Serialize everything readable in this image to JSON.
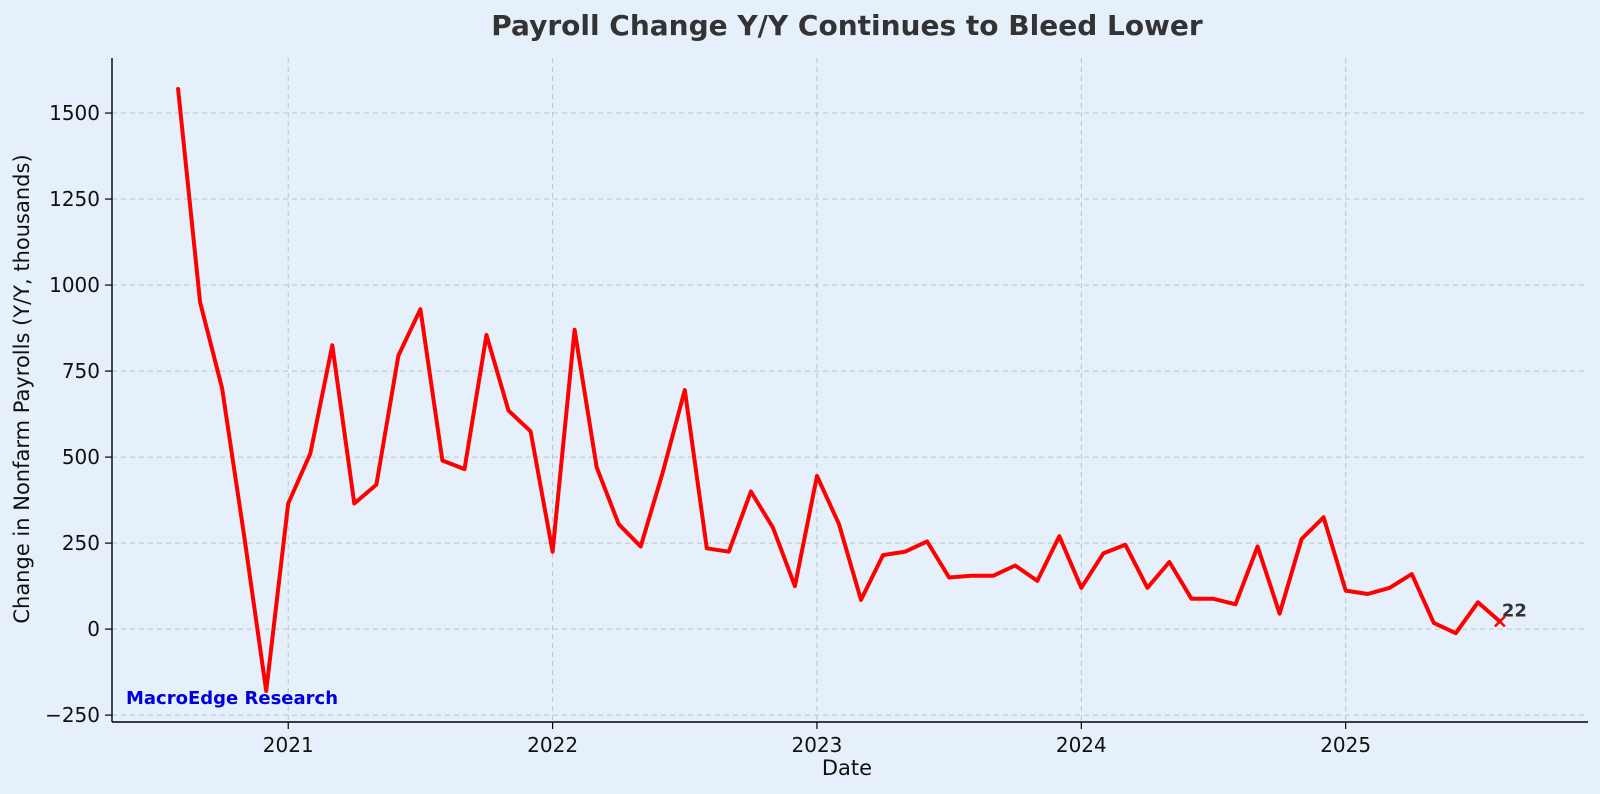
{
  "chart_data": {
    "type": "line",
    "title": "Payroll Change Y/Y Continues to Bleed Lower",
    "xlabel": "Date",
    "ylabel": "Change in Nonfarm Payrolls (Y/Y, thousands)",
    "xlim": [
      "2020-05-01",
      "2025-12-01"
    ],
    "ylim": [
      -270,
      1660
    ],
    "grid": true,
    "x_ticks": [
      "2021",
      "2022",
      "2023",
      "2024",
      "2025"
    ],
    "y_ticks": [
      -250,
      0,
      250,
      500,
      750,
      1000,
      1250,
      1500
    ],
    "color": "#ff0000",
    "series": [
      {
        "x": [
          "2020-08",
          "2020-09",
          "2020-10",
          "2020-11",
          "2020-12",
          "2021-01",
          "2021-02",
          "2021-03",
          "2021-04",
          "2021-05",
          "2021-06",
          "2021-07",
          "2021-08",
          "2021-09",
          "2021-10",
          "2021-11",
          "2021-12",
          "2022-01",
          "2022-02",
          "2022-03",
          "2022-04",
          "2022-05",
          "2022-06",
          "2022-07",
          "2022-08",
          "2022-09",
          "2022-10",
          "2022-11",
          "2022-12",
          "2023-01",
          "2023-02",
          "2023-03",
          "2023-04",
          "2023-05",
          "2023-06",
          "2023-07",
          "2023-08",
          "2023-09",
          "2023-10",
          "2023-11",
          "2023-12",
          "2024-01",
          "2024-02",
          "2024-03",
          "2024-04",
          "2024-05",
          "2024-06",
          "2024-07",
          "2024-08",
          "2024-09",
          "2024-10",
          "2024-11",
          "2024-12",
          "2025-01",
          "2025-02",
          "2025-03",
          "2025-04",
          "2025-05",
          "2025-06",
          "2025-07",
          "2025-08"
        ],
        "values": [
          1570,
          950,
          700,
          270,
          -180,
          365,
          510,
          825,
          365,
          420,
          795,
          930,
          490,
          465,
          855,
          635,
          575,
          225,
          870,
          470,
          305,
          240,
          455,
          695,
          235,
          225,
          400,
          295,
          125,
          445,
          305,
          85,
          215,
          225,
          255,
          150,
          155,
          155,
          185,
          140,
          270,
          120,
          220,
          245,
          120,
          195,
          88,
          88,
          72,
          240,
          45,
          262,
          325,
          112,
          102,
          120,
          160,
          18,
          -12,
          78,
          22
        ]
      }
    ],
    "annotations": {
      "last_value_label": "22",
      "watermark": "MacroEdge Research"
    }
  }
}
